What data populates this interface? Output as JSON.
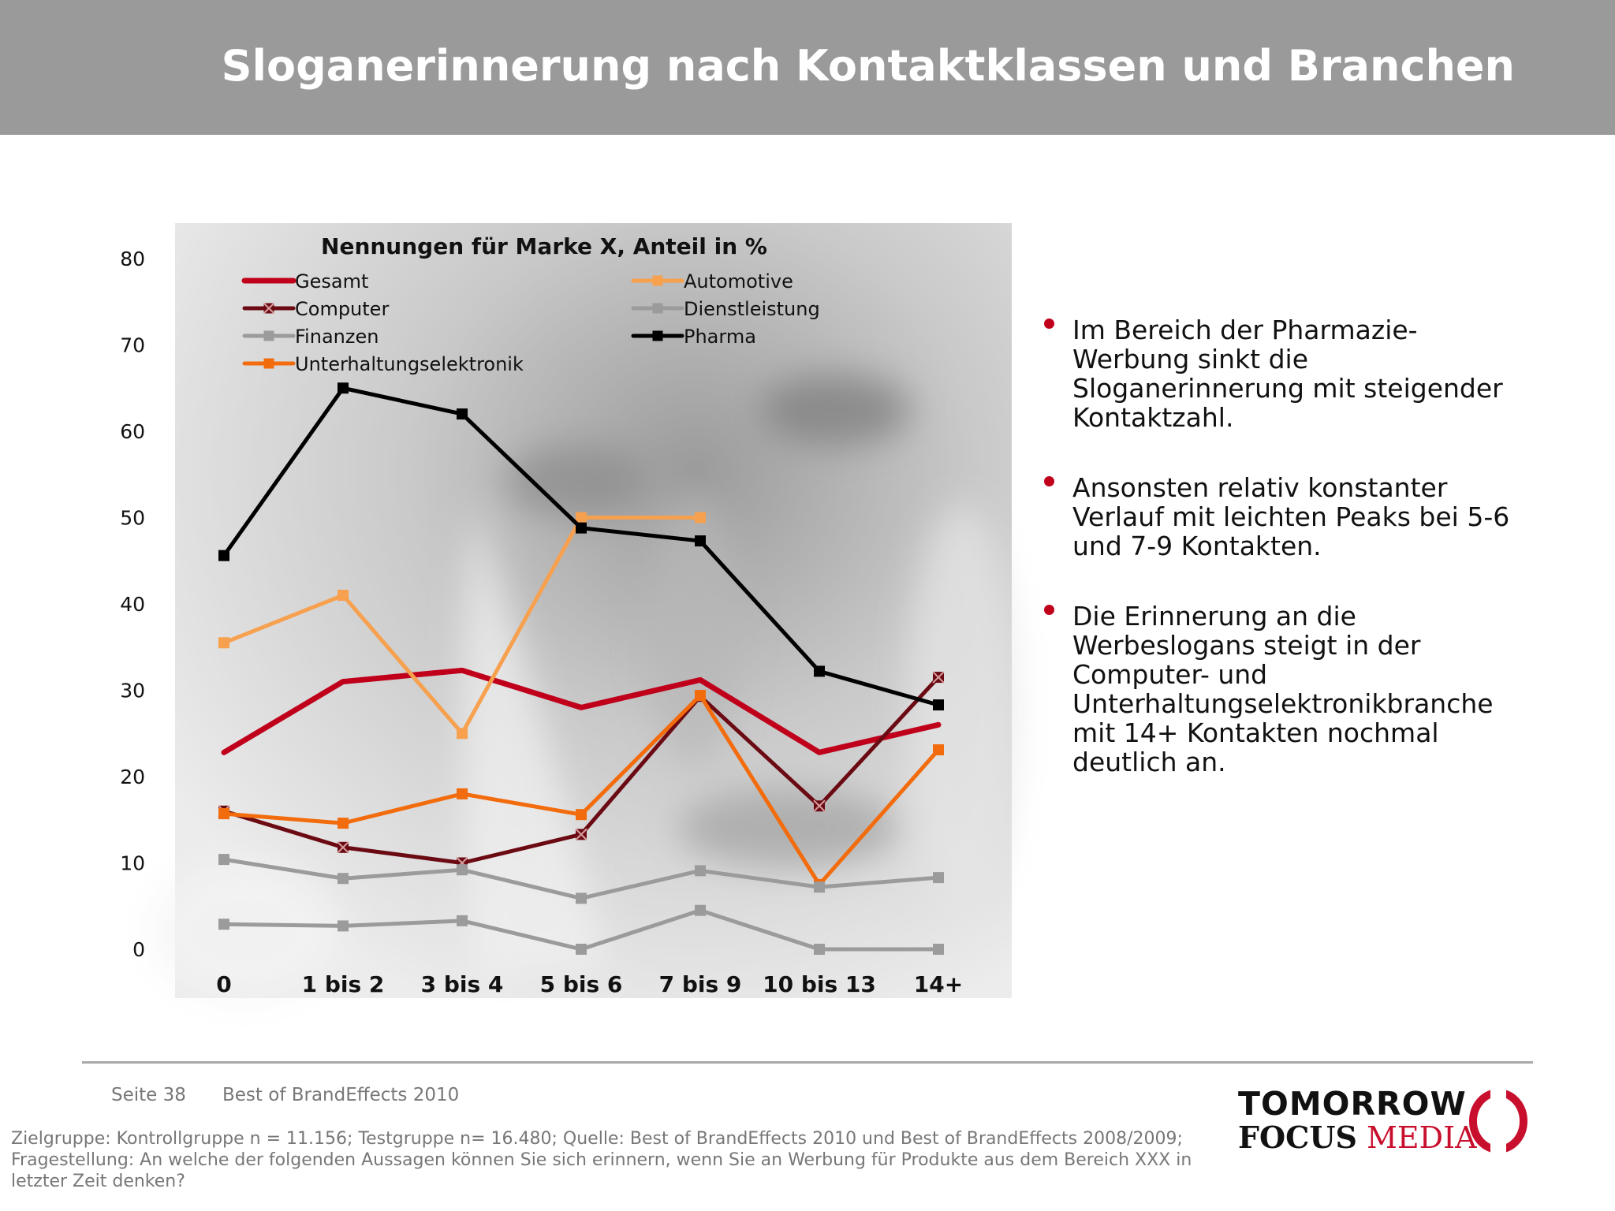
{
  "header": {
    "title": "Sloganerinnerung nach Kontaktklassen und Branchen"
  },
  "chart_data": {
    "type": "line",
    "title": "Nennungen für Marke X, Anteil in %",
    "categories": [
      "0",
      "1 bis 2",
      "3 bis 4",
      "5 bis 6",
      "7 bis 9",
      "10 bis 13",
      "14+"
    ],
    "yticks": [
      "80",
      "70",
      "60",
      "50",
      "40",
      "30",
      "20",
      "10",
      "0"
    ],
    "ylim": [
      0,
      80
    ],
    "grid": false,
    "legend_position": "top",
    "series": [
      {
        "name": "Gesamt",
        "color": "#c0001a",
        "marker": "none",
        "values": [
          22.8,
          31.0,
          32.3,
          28.0,
          31.2,
          22.8,
          26.0
        ]
      },
      {
        "name": "Computer",
        "color": "#6b0a12",
        "marker": "x-square",
        "values": [
          16.0,
          11.8,
          10.0,
          13.3,
          29.3,
          16.6,
          31.5
        ]
      },
      {
        "name": "Finanzen",
        "color": "#9b9b9b",
        "marker": "square",
        "values": [
          2.9,
          2.7,
          3.3,
          0.0,
          4.5,
          0.0,
          0.0
        ]
      },
      {
        "name": "Unterhaltungselektronik",
        "color": "#f26c0d",
        "marker": "square",
        "values": [
          15.7,
          14.6,
          18.0,
          15.6,
          29.4,
          7.5,
          23.1
        ]
      },
      {
        "name": "Automotive",
        "color": "#f7a04e",
        "marker": "square",
        "values": [
          35.5,
          41.0,
          25.0,
          50.0,
          50.0,
          null,
          null
        ]
      },
      {
        "name": "Dienstleistung",
        "color": "#9b9b9b",
        "marker": "square",
        "values": [
          10.4,
          8.2,
          9.2,
          5.9,
          9.1,
          7.2,
          8.3
        ]
      },
      {
        "name": "Pharma",
        "color": "#000000",
        "marker": "square",
        "values": [
          45.6,
          65.0,
          62.0,
          48.8,
          47.3,
          32.2,
          28.3
        ]
      }
    ]
  },
  "bullets": [
    "Im Bereich der Pharmazie-Werbung sinkt die Sloganerinnerung mit steigender Kontaktzahl.",
    "Ansonsten relativ konstanter Verlauf mit leichten Peaks bei 5-6 und 7-9 Kontakten.",
    "Die Erinnerung an die Werbeslogans steigt in der Computer- und Unterhaltungselektronikbranche mit 14+ Kontakten nochmal deutlich an."
  ],
  "footer": {
    "page": "Seite 38",
    "study": "Best of BrandEffects 2010",
    "note": "Zielgruppe: Kontrollgruppe n = 11.156; Testgruppe n= 16.480; Quelle: Best of BrandEffects 2010 und Best of BrandEffects 2008/2009; Fragestellung: An welche der folgenden Aussagen können Sie sich erinnern, wenn Sie an Werbung für Produkte aus dem Bereich XXX in letzter Zeit denken?"
  },
  "logo": {
    "top": "TOMORROW",
    "focus": "FOCUS",
    "media": "MEDIA"
  }
}
